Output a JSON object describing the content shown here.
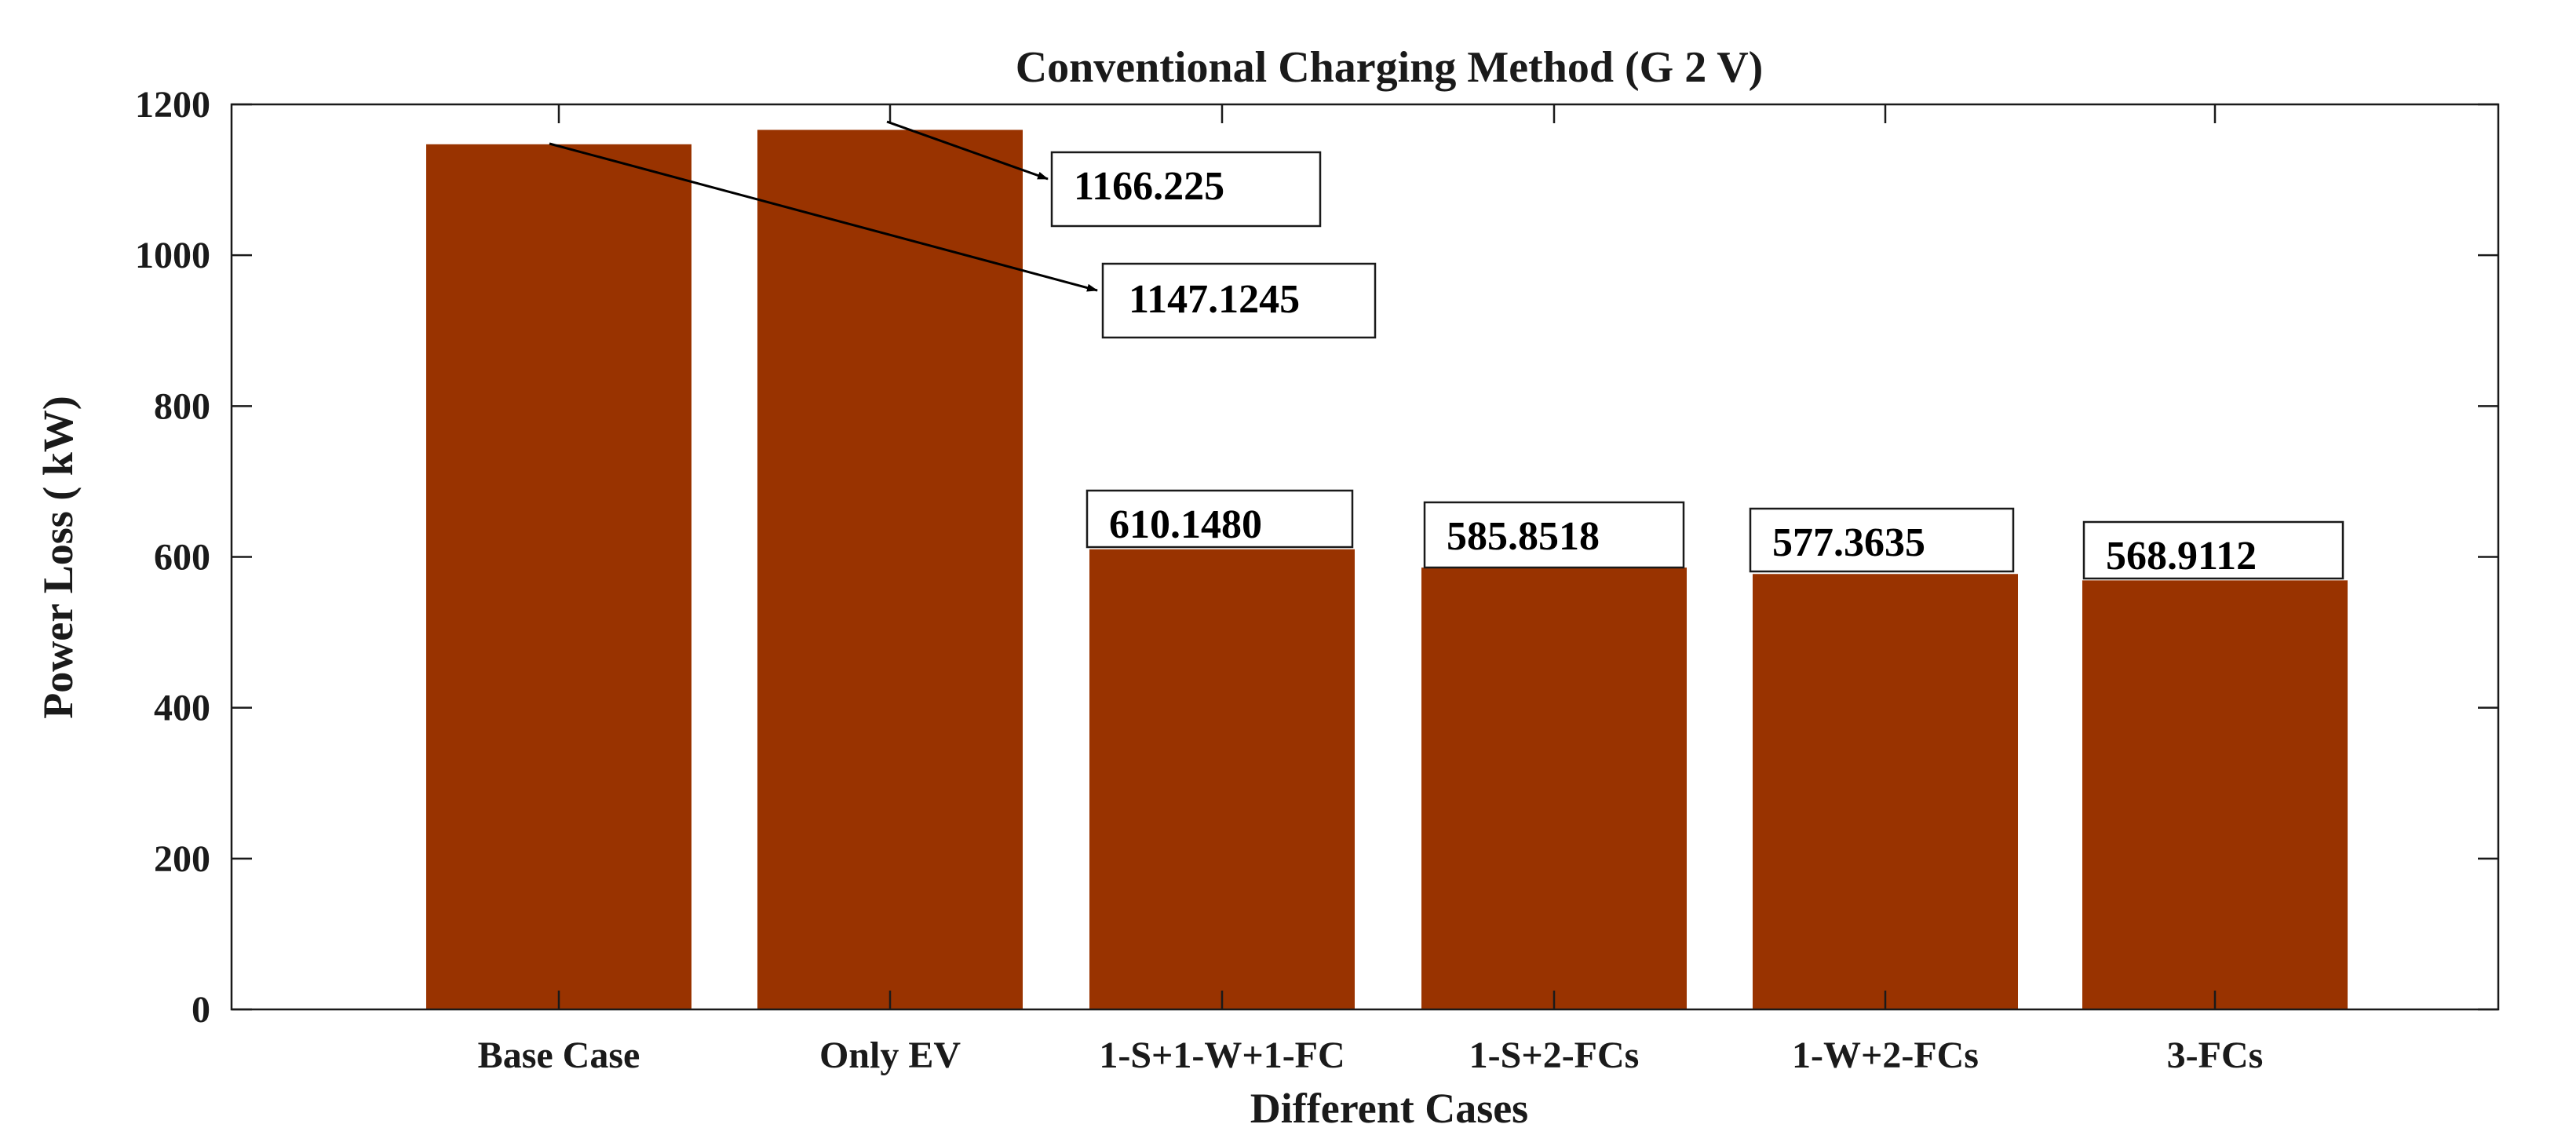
{
  "chart_data": {
    "type": "bar",
    "title": "Conventional Charging Method (G 2 V)",
    "xlabel": "Different Cases",
    "ylabel": "Power Loss ( kW)",
    "ylim": [
      0,
      1200
    ],
    "yticks": [
      0,
      200,
      400,
      600,
      800,
      1000,
      1200
    ],
    "categories": [
      "Base Case",
      "Only EV",
      "1-S+1-W+1-FC",
      "1-S+2-FCs",
      "1-W+2-FCs",
      "3-FCs"
    ],
    "values": [
      1147.1245,
      1166.225,
      610.148,
      585.8518,
      577.3635,
      568.9112
    ],
    "bar_color": "#993300",
    "grid": false,
    "annotations": [
      {
        "text": "1166.225",
        "bar_index": 1,
        "style": "arrow"
      },
      {
        "text": "1147.1245",
        "bar_index": 0,
        "style": "arrow"
      },
      {
        "text": "610.1480",
        "bar_index": 2,
        "style": "box"
      },
      {
        "text": "585.8518",
        "bar_index": 3,
        "style": "box"
      },
      {
        "text": "577.3635",
        "bar_index": 4,
        "style": "box"
      },
      {
        "text": "568.9112",
        "bar_index": 5,
        "style": "box"
      }
    ]
  }
}
